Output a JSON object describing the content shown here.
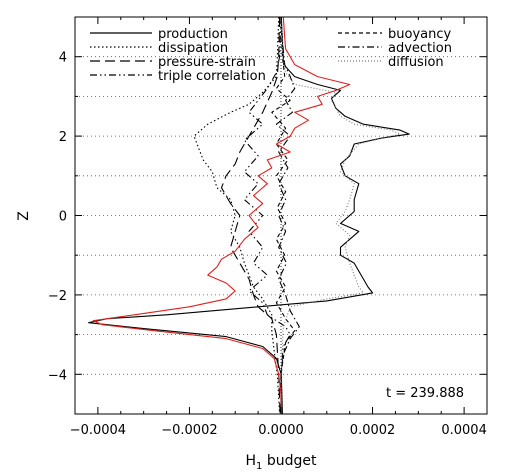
{
  "chart_data": {
    "type": "line",
    "title": "",
    "xlabel": "H",
    "xlabel_subscript": "1",
    "xlabel_suffix": " budget",
    "ylabel": "Z",
    "xlim": [
      -0.00045,
      0.00045
    ],
    "ylim": [
      -5,
      5
    ],
    "xticks": [
      -0.0004,
      -0.0002,
      0.0,
      0.0002,
      0.0004
    ],
    "xtick_labels": [
      "−0.0004",
      "−0.0002",
      "0.0000",
      "0.0002",
      "0.0004"
    ],
    "yticks": [
      -4,
      -2,
      0,
      2,
      4
    ],
    "ytick_labels": [
      "−4",
      "−2",
      "0",
      "2",
      "4"
    ],
    "grid": "dotted horizontal lines at each integer z",
    "annotation": "t = 239.888",
    "legend_position": "top",
    "series": [
      {
        "name": "production",
        "style": "solid",
        "color": "#000000",
        "points": [
          [
            8e-07,
            5.0
          ],
          [
            2e-06,
            4.6
          ],
          [
            4e-06,
            4.2
          ],
          [
            6e-06,
            3.8
          ],
          [
            3e-05,
            3.5
          ],
          [
            8e-05,
            3.3
          ],
          [
            0.00013,
            3.15
          ],
          [
            0.00011,
            2.95
          ],
          [
            0.00012,
            2.7
          ],
          [
            0.00014,
            2.5
          ],
          [
            0.00018,
            2.3
          ],
          [
            0.00026,
            2.15
          ],
          [
            0.00028,
            2.05
          ],
          [
            0.00022,
            1.95
          ],
          [
            0.00016,
            1.8
          ],
          [
            0.00015,
            1.5
          ],
          [
            0.00013,
            1.3
          ],
          [
            0.00014,
            1.0
          ],
          [
            0.00017,
            0.8
          ],
          [
            0.00016,
            0.4
          ],
          [
            0.00016,
            0.1
          ],
          [
            0.00013,
            -0.2
          ],
          [
            0.00017,
            -0.4
          ],
          [
            0.00015,
            -0.6
          ],
          [
            0.00013,
            -0.8
          ],
          [
            0.00013,
            -1.0
          ],
          [
            0.00016,
            -1.2
          ],
          [
            0.00017,
            -1.4
          ],
          [
            0.00018,
            -1.6
          ],
          [
            0.00019,
            -1.8
          ],
          [
            0.0002,
            -1.95
          ],
          [
            0.0001,
            -2.15
          ],
          [
            -0.0001,
            -2.35
          ],
          [
            -0.00025,
            -2.5
          ],
          [
            -0.00038,
            -2.6
          ],
          [
            -0.00042,
            -2.7
          ],
          [
            -0.0003,
            -2.85
          ],
          [
            -0.00012,
            -3.05
          ],
          [
            -4e-05,
            -3.3
          ],
          [
            -1e-05,
            -3.6
          ],
          [
            5e-07,
            -4.0
          ],
          [
            2e-06,
            -4.5
          ],
          [
            3e-06,
            -5.0
          ]
        ]
      },
      {
        "name": "dissipation",
        "style": "dotted",
        "color": "#000000",
        "points": [
          [
            -5e-06,
            5.0
          ],
          [
            -8e-06,
            4.0
          ],
          [
            -1e-05,
            3.5
          ],
          [
            -4e-05,
            3.1
          ],
          [
            -7e-05,
            2.8
          ],
          [
            -0.00011,
            2.6
          ],
          [
            -0.00016,
            2.3
          ],
          [
            -0.00019,
            2.0
          ],
          [
            -0.00018,
            1.7
          ],
          [
            -0.00017,
            1.4
          ],
          [
            -0.00015,
            1.1
          ],
          [
            -0.00014,
            0.7
          ],
          [
            -0.00011,
            0.4
          ],
          [
            -0.0001,
            0.0
          ],
          [
            -0.00011,
            -0.4
          ],
          [
            -9e-05,
            -0.8
          ],
          [
            -8e-05,
            -1.2
          ],
          [
            -7e-05,
            -1.5
          ],
          [
            -6e-05,
            -1.8
          ],
          [
            -4e-05,
            -2.1
          ],
          [
            -2e-05,
            -2.5
          ],
          [
            -2e-05,
            -2.9
          ],
          [
            -1.5e-05,
            -3.4
          ],
          [
            -8e-06,
            -4.0
          ],
          [
            -3e-06,
            -5.0
          ]
        ]
      },
      {
        "name": "pressure-strain",
        "style": "long-dash",
        "color": "#000000",
        "points": [
          [
            -3e-06,
            5.0
          ],
          [
            -5e-06,
            4.0
          ],
          [
            -8e-06,
            3.5
          ],
          [
            -2e-05,
            3.1
          ],
          [
            -4e-05,
            2.6
          ],
          [
            -7e-05,
            2.0
          ],
          [
            -9e-05,
            1.6
          ],
          [
            -0.0001,
            1.3
          ],
          [
            -0.00012,
            1.0
          ],
          [
            -0.00013,
            0.7
          ],
          [
            -0.00011,
            0.3
          ],
          [
            -9e-05,
            0.0
          ],
          [
            -0.0001,
            -0.4
          ],
          [
            -0.00011,
            -0.8
          ],
          [
            -9e-05,
            -1.2
          ],
          [
            -7e-05,
            -1.6
          ],
          [
            -6e-05,
            -2.0
          ],
          [
            -5e-05,
            -2.3
          ],
          [
            -2e-05,
            -2.6
          ],
          [
            -1e-05,
            -3.0
          ],
          [
            -5e-06,
            -4.0
          ],
          [
            -2e-06,
            -5.0
          ]
        ]
      },
      {
        "name": "triple correlation",
        "style": "dash-dot-dot",
        "color": "#000000",
        "points": [
          [
            0.0,
            5.0
          ],
          [
            -3e-06,
            4.0
          ],
          [
            -1e-05,
            3.6
          ],
          [
            -3e-05,
            3.2
          ],
          [
            -5e-05,
            2.9
          ],
          [
            -7e-05,
            2.6
          ],
          [
            -4e-05,
            2.3
          ],
          [
            -8e-05,
            1.9
          ],
          [
            -5e-05,
            1.5
          ],
          [
            -8e-05,
            1.1
          ],
          [
            -5e-05,
            0.8
          ],
          [
            -8e-05,
            0.4
          ],
          [
            -4e-05,
            0.0
          ],
          [
            -7e-05,
            -0.4
          ],
          [
            -4e-05,
            -0.8
          ],
          [
            -6e-05,
            -1.2
          ],
          [
            -3e-05,
            -1.5
          ],
          [
            -7e-05,
            -1.9
          ],
          [
            -4e-05,
            -2.2
          ],
          [
            -3e-05,
            -2.5
          ],
          [
            1e-05,
            -2.8
          ],
          [
            2e-05,
            -3.0
          ],
          [
            5e-06,
            -3.3
          ],
          [
            0.0,
            -4.0
          ],
          [
            0.0,
            -5.0
          ]
        ]
      },
      {
        "name": "buoyancy",
        "style": "short-dash",
        "color": "#000000",
        "points": [
          [
            0.0,
            5.0
          ],
          [
            3e-06,
            4.0
          ],
          [
            8e-06,
            3.5
          ],
          [
            -1e-05,
            3.2
          ],
          [
            2e-05,
            2.9
          ],
          [
            -2e-05,
            2.6
          ],
          [
            1e-05,
            2.2
          ],
          [
            -1e-05,
            1.8
          ],
          [
            1.5e-05,
            1.4
          ],
          [
            -1e-05,
            1.0
          ],
          [
            1e-05,
            0.6
          ],
          [
            -8e-06,
            0.2
          ],
          [
            1e-05,
            -0.2
          ],
          [
            -1e-05,
            -0.6
          ],
          [
            8e-06,
            -1.0
          ],
          [
            -1e-05,
            -1.4
          ],
          [
            1e-05,
            -1.8
          ],
          [
            -1e-05,
            -2.2
          ],
          [
            1e-05,
            -2.6
          ],
          [
            3e-05,
            -2.9
          ],
          [
            1e-05,
            -3.2
          ],
          [
            0.0,
            -4.0
          ],
          [
            0.0,
            -5.0
          ]
        ]
      },
      {
        "name": "advection",
        "style": "dash-dot",
        "color": "#000000",
        "points": [
          [
            0.0,
            5.0
          ],
          [
            4e-06,
            4.3
          ],
          [
            8e-06,
            3.8
          ],
          [
            2e-05,
            3.5
          ],
          [
            3e-05,
            3.2
          ],
          [
            1e-05,
            2.9
          ],
          [
            2.5e-05,
            2.6
          ],
          [
            -1e-05,
            2.3
          ],
          [
            2e-05,
            2.0
          ],
          [
            -5e-06,
            1.6
          ],
          [
            1.5e-05,
            1.2
          ],
          [
            -5e-06,
            0.8
          ],
          [
            1e-05,
            0.4
          ],
          [
            -5e-06,
            0.0
          ],
          [
            1e-05,
            -0.4
          ],
          [
            -5e-06,
            -0.8
          ],
          [
            1.2e-05,
            -1.2
          ],
          [
            -5e-06,
            -1.6
          ],
          [
            1e-05,
            -2.0
          ],
          [
            2e-05,
            -2.4
          ],
          [
            4e-05,
            -2.8
          ],
          [
            2e-05,
            -3.1
          ],
          [
            5e-06,
            -3.5
          ],
          [
            0.0,
            -4.0
          ],
          [
            0.0,
            -5.0
          ]
        ]
      },
      {
        "name": "diffusion",
        "style": "fine-dot",
        "color": "#777777",
        "points": [
          [
            5e-07,
            5.0
          ],
          [
            2e-06,
            4.5
          ],
          [
            4e-06,
            4.0
          ],
          [
            1e-05,
            3.6
          ],
          [
            3e-05,
            3.3
          ],
          [
            0.00012,
            3.1
          ],
          [
            0.00011,
            2.9
          ],
          [
            0.00013,
            2.5
          ],
          [
            0.00016,
            2.3
          ],
          [
            0.00024,
            2.15
          ],
          [
            0.00026,
            2.05
          ],
          [
            0.00022,
            1.95
          ],
          [
            0.00017,
            1.8
          ],
          [
            0.00014,
            1.4
          ],
          [
            0.00013,
            1.1
          ],
          [
            0.00016,
            0.8
          ],
          [
            0.00015,
            0.4
          ],
          [
            0.00014,
            0.1
          ],
          [
            0.00012,
            -0.2
          ],
          [
            0.00015,
            -0.5
          ],
          [
            0.00014,
            -0.8
          ],
          [
            0.00015,
            -1.2
          ],
          [
            0.00016,
            -1.5
          ],
          [
            0.00017,
            -1.8
          ],
          [
            0.00018,
            -1.95
          ],
          [
            0.0001,
            -2.1
          ],
          [
            2e-05,
            -2.3
          ],
          [
            5e-06,
            -2.8
          ],
          [
            2e-06,
            -3.5
          ],
          [
            1e-06,
            -5.0
          ]
        ]
      },
      {
        "name": "",
        "style": "solid",
        "color": "#e02020",
        "points": [
          [
            5e-06,
            5.0
          ],
          [
            8e-06,
            4.5
          ],
          [
            1e-05,
            4.2
          ],
          [
            3e-05,
            3.8
          ],
          [
            8e-05,
            3.5
          ],
          [
            0.00015,
            3.3
          ],
          [
            0.00012,
            3.15
          ],
          [
            8e-05,
            3.0
          ],
          [
            9e-05,
            2.8
          ],
          [
            3e-05,
            2.6
          ],
          [
            6e-05,
            2.4
          ],
          [
            3e-05,
            2.2
          ],
          [
            2e-05,
            2.0
          ],
          [
            -1e-05,
            1.8
          ],
          [
            2e-05,
            1.6
          ],
          [
            -3e-05,
            1.4
          ],
          [
            -2e-05,
            1.2
          ],
          [
            -5e-05,
            1.0
          ],
          [
            -3e-05,
            0.8
          ],
          [
            -6e-05,
            0.5
          ],
          [
            -4e-05,
            0.3
          ],
          [
            -7e-05,
            0.0
          ],
          [
            -5e-05,
            -0.3
          ],
          [
            -8e-05,
            -0.6
          ],
          [
            -0.0001,
            -0.9
          ],
          [
            -0.00013,
            -1.1
          ],
          [
            -0.00014,
            -1.3
          ],
          [
            -0.00016,
            -1.5
          ],
          [
            -0.00012,
            -1.7
          ],
          [
            -0.0001,
            -1.9
          ],
          [
            -0.00012,
            -2.1
          ],
          [
            -0.0002,
            -2.3
          ],
          [
            -0.00032,
            -2.5
          ],
          [
            -0.00041,
            -2.65
          ],
          [
            -0.00039,
            -2.75
          ],
          [
            -0.00028,
            -2.9
          ],
          [
            -0.00012,
            -3.1
          ],
          [
            -4e-05,
            -3.35
          ],
          [
            -1.5e-05,
            -3.6
          ],
          [
            -5e-06,
            -4.0
          ],
          [
            0.0,
            -4.5
          ],
          [
            1e-06,
            -5.0
          ]
        ]
      }
    ]
  }
}
